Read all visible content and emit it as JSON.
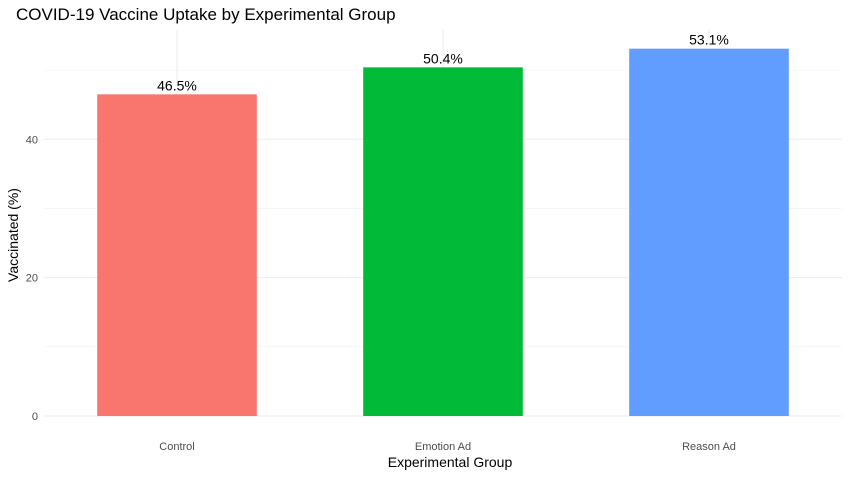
{
  "chart_data": {
    "type": "bar",
    "title": "COVID-19 Vaccine Uptake by Experimental Group",
    "xlabel": "Experimental Group",
    "ylabel": "Vaccinated (%)",
    "categories": [
      "Control",
      "Emotion Ad",
      "Reason Ad"
    ],
    "values": [
      46.5,
      50.4,
      53.1
    ],
    "data_labels": [
      "46.5%",
      "50.4%",
      "53.1%"
    ],
    "colors": [
      "#F8766D",
      "#00BA38",
      "#619CFF"
    ],
    "ylim": [
      0,
      55.8
    ],
    "yticks": [
      0,
      20,
      40
    ],
    "ytick_labels": [
      "0",
      "20",
      "40"
    ],
    "grid": true,
    "legend": "none"
  }
}
